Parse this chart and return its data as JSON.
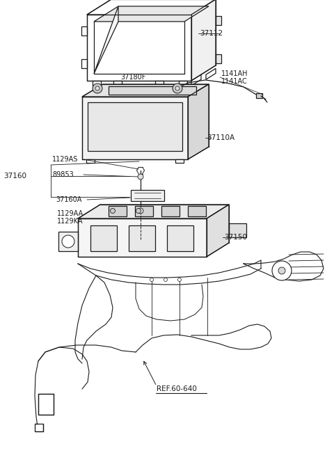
{
  "background": "#ffffff",
  "lc": "#1a1a1a",
  "tc": "#1a1a1a",
  "lw": 0.9,
  "parts": {
    "37112": "37112",
    "1141AH": "1141AH",
    "1141AC": "1141AC",
    "37180F": "37180F",
    "37110A": "37110A",
    "1129AS": "1129AS",
    "89853": "89853",
    "37160": "37160",
    "37160A": "37160A",
    "1129AA": "1129AA",
    "1129KA": "1129KA",
    "37150": "37150",
    "REF60640": "REF.60-640"
  }
}
